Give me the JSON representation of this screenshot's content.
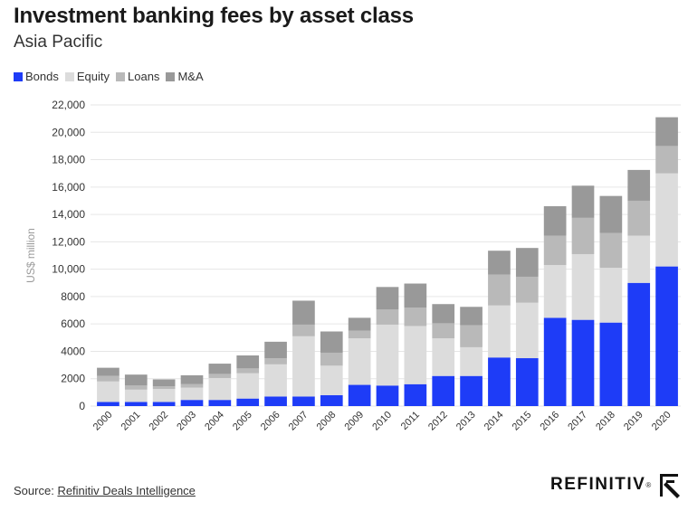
{
  "title": "Investment banking fees by asset class",
  "subtitle": "Asia Pacific",
  "source_label": "Source:",
  "source_link": "Refinitiv Deals Intelligence",
  "brand": "REFINITIV",
  "brand_mark": "®",
  "colors": {
    "Bonds": "#1e3cf7",
    "Equity": "#dcdcdc",
    "Loans": "#b9b9b9",
    "M&A": "#999999"
  },
  "chart_data": {
    "type": "bar",
    "stacked": true,
    "title": "Investment banking fees by asset class",
    "subtitle": "Asia Pacific",
    "xlabel": "",
    "ylabel": "US$ million",
    "ylim": [
      0,
      22000
    ],
    "yticks": [
      0,
      2000,
      4000,
      6000,
      8000,
      10000,
      12000,
      14000,
      16000,
      18000,
      20000,
      22000
    ],
    "ytick_labels": [
      "0",
      "2000",
      "4000",
      "6000",
      "8000",
      "10,000",
      "12,000",
      "14,000",
      "16,000",
      "18,000",
      "20,000",
      "22,000"
    ],
    "categories": [
      "2000",
      "2001",
      "2002",
      "2003",
      "2004",
      "2005",
      "2006",
      "2007",
      "2008",
      "2009",
      "2010",
      "2011",
      "2012",
      "2013",
      "2014",
      "2015",
      "2016",
      "2017",
      "2018",
      "2019",
      "2020"
    ],
    "legend_position": "top-left",
    "series": [
      {
        "name": "Bonds",
        "values": [
          300,
          300,
          300,
          450,
          450,
          550,
          700,
          700,
          800,
          1550,
          1500,
          1600,
          2200,
          2200,
          3550,
          3500,
          6450,
          6300,
          6100,
          9000,
          10200
        ]
      },
      {
        "name": "Equity",
        "values": [
          1500,
          900,
          950,
          900,
          1600,
          1850,
          2350,
          4400,
          2150,
          3400,
          4450,
          4250,
          2750,
          2100,
          3800,
          4050,
          3850,
          4800,
          4000,
          3450,
          6800
        ]
      },
      {
        "name": "Loans",
        "values": [
          400,
          300,
          200,
          250,
          300,
          350,
          450,
          850,
          950,
          550,
          1100,
          1350,
          1100,
          1600,
          2250,
          1900,
          2150,
          2650,
          2550,
          2550,
          2000
        ]
      },
      {
        "name": "M&A",
        "values": [
          600,
          800,
          500,
          650,
          750,
          950,
          1200,
          1750,
          1550,
          950,
          1650,
          1750,
          1400,
          1350,
          1750,
          2100,
          2150,
          2350,
          2700,
          2250,
          2100
        ]
      }
    ]
  }
}
